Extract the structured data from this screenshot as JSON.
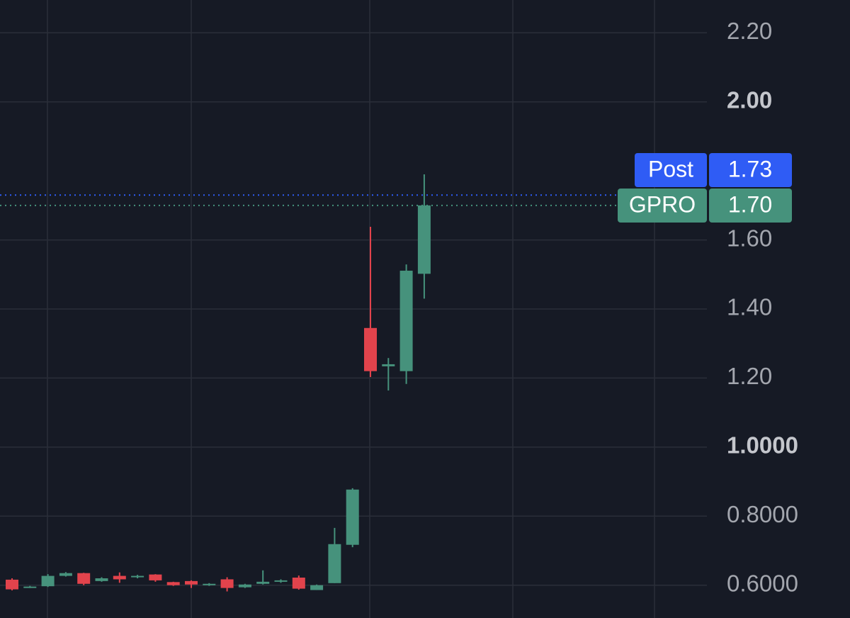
{
  "chart_data": {
    "type": "candlestick",
    "ylim": [
      0.505,
      2.295
    ],
    "yticks": [
      {
        "value": 2.2,
        "label": "2.20"
      },
      {
        "value": 2,
        "label": "2.00"
      },
      {
        "value": 1.6,
        "label": "1.60"
      },
      {
        "value": 1.4,
        "label": "1.40"
      },
      {
        "value": 1.2,
        "label": "1.20"
      },
      {
        "value": 1,
        "label": "1.0000"
      },
      {
        "value": 0.8,
        "label": "0.8000"
      },
      {
        "value": 0.6,
        "label": "0.6000"
      }
    ],
    "grid": true,
    "up_color": "#46927c",
    "down_color": "#e2434c",
    "series": [
      {
        "open": [
          0.616,
          0.594,
          0.597,
          0.627,
          0.635,
          0.612,
          0.627,
          0.623,
          0.631,
          0.609,
          0.612,
          0.6,
          0.617,
          0.594,
          0.604,
          0.61,
          0.622,
          0.586,
          0.606,
          0.717,
          1.345,
          1.234,
          1.22,
          1.502
        ],
        "high": [
          0.62,
          0.598,
          0.632,
          0.638,
          0.636,
          0.623,
          0.637,
          0.63,
          0.632,
          0.61,
          0.614,
          0.606,
          0.623,
          0.604,
          0.643,
          0.617,
          0.628,
          0.602,
          0.766,
          0.881,
          1.638,
          1.258,
          1.529,
          1.79
        ],
        "low": [
          0.585,
          0.592,
          0.595,
          0.625,
          0.6,
          0.61,
          0.607,
          0.62,
          0.61,
          0.598,
          0.592,
          0.598,
          0.582,
          0.592,
          0.602,
          0.607,
          0.587,
          0.586,
          0.606,
          0.71,
          1.203,
          1.164,
          1.183,
          1.43
        ],
        "close": [
          0.588,
          0.596,
          0.627,
          0.635,
          0.604,
          0.62,
          0.617,
          0.627,
          0.614,
          0.6,
          0.602,
          0.604,
          0.592,
          0.602,
          0.61,
          0.614,
          0.59,
          0.6,
          0.719,
          0.877,
          1.22,
          1.24,
          1.511,
          1.7
        ]
      }
    ],
    "price_lines": [
      {
        "label": "Post",
        "value": 1.73,
        "color": "#2f5cf5"
      },
      {
        "label": "GPRO",
        "value": 1.7,
        "value_label": "1.70",
        "color": "#46927c"
      }
    ]
  }
}
